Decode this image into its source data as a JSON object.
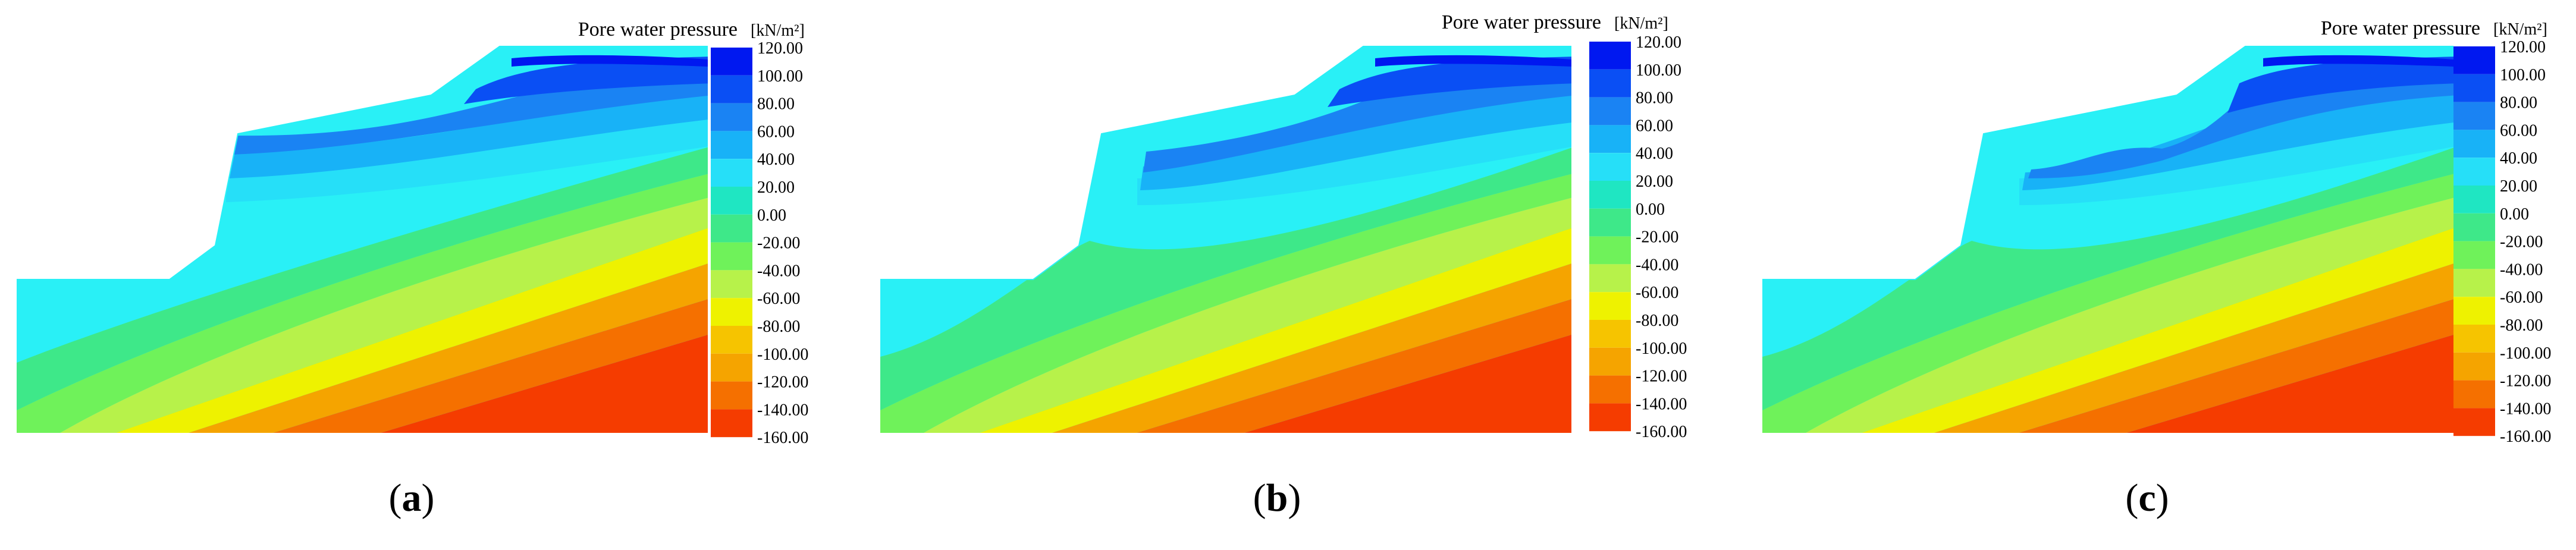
{
  "panels": [
    {
      "id": "a",
      "title": "Pore water pressure",
      "unit": "[kN/m²]",
      "label": "a"
    },
    {
      "id": "b",
      "title": "Pore water pressure",
      "unit": "[kN/m²]",
      "label": "b"
    },
    {
      "id": "c",
      "title": "Pore water pressure",
      "unit": "[kN/m²]",
      "label": "c"
    }
  ],
  "legend": {
    "ticks": [
      "120.00",
      "100.00",
      "80.00",
      "60.00",
      "40.00",
      "20.00",
      "0.00",
      "-20.00",
      "-40.00",
      "-60.00",
      "-80.00",
      "-100.00",
      "-120.00",
      "-140.00",
      "-160.00"
    ],
    "colors": [
      "#0018f0",
      "#0a4ff4",
      "#1a83f3",
      "#18b2f7",
      "#26dff8",
      "#1fe6c2",
      "#3ee889",
      "#6ff25a",
      "#b7f24a",
      "#eef200",
      "#f6c400",
      "#f5a400",
      "#f57000",
      "#f53c00"
    ]
  },
  "colors": {
    "deep_blue": "#0a2ff0",
    "blue": "#1a7ff3",
    "light_blue": "#2fc8f6",
    "cyan": "#29f0f6",
    "green": "#3ce88a",
    "lime": "#77f05a",
    "yellow": "#eef200",
    "orange": "#f5a400",
    "red": "#f53c00"
  }
}
